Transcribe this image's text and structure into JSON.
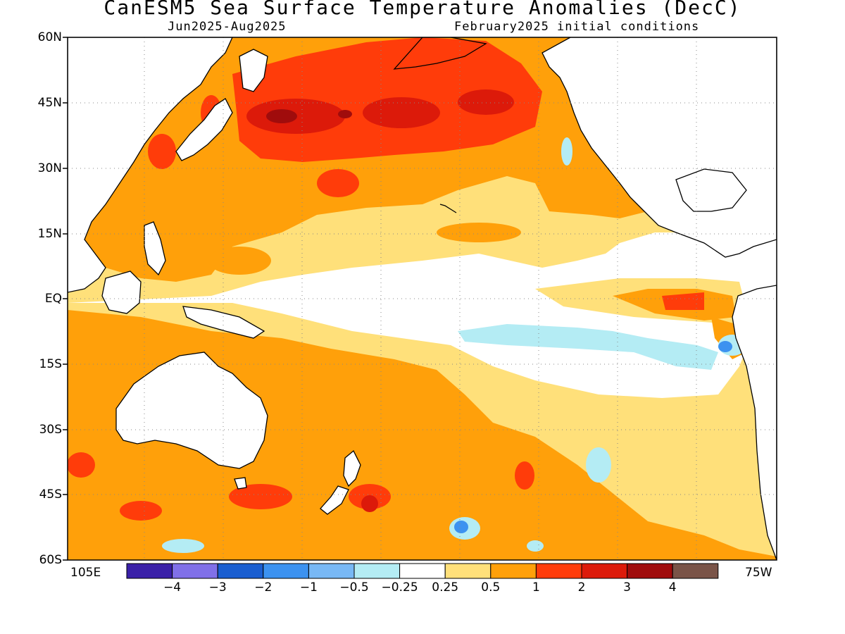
{
  "title": "CanESM5 Sea Surface Temperature Anomalies (DecC)",
  "subtitle_left": "Jun2025-Aug2025",
  "subtitle_right": "February2025 initial conditions",
  "lat_ticks": [
    "60N",
    "45N",
    "30N",
    "15N",
    "EQ",
    "15S",
    "30S",
    "45S",
    "60S"
  ],
  "lon_left": "105E",
  "lon_right": "75W",
  "colorbar": {
    "colors": [
      "#3a20a8",
      "#8070e8",
      "#1a5ed0",
      "#3c92f0",
      "#78b8f5",
      "#b4ecf4",
      "#ffffff",
      "#ffe07a",
      "#ffa00a",
      "#ff3c0a",
      "#dc1a0a",
      "#a00c0c",
      "#7a5448"
    ],
    "labels": [
      "-4",
      "-3",
      "-2",
      "-1",
      "-0.5",
      "-0.25",
      "0.25",
      "0.5",
      "1",
      "2",
      "3",
      "4"
    ]
  }
}
